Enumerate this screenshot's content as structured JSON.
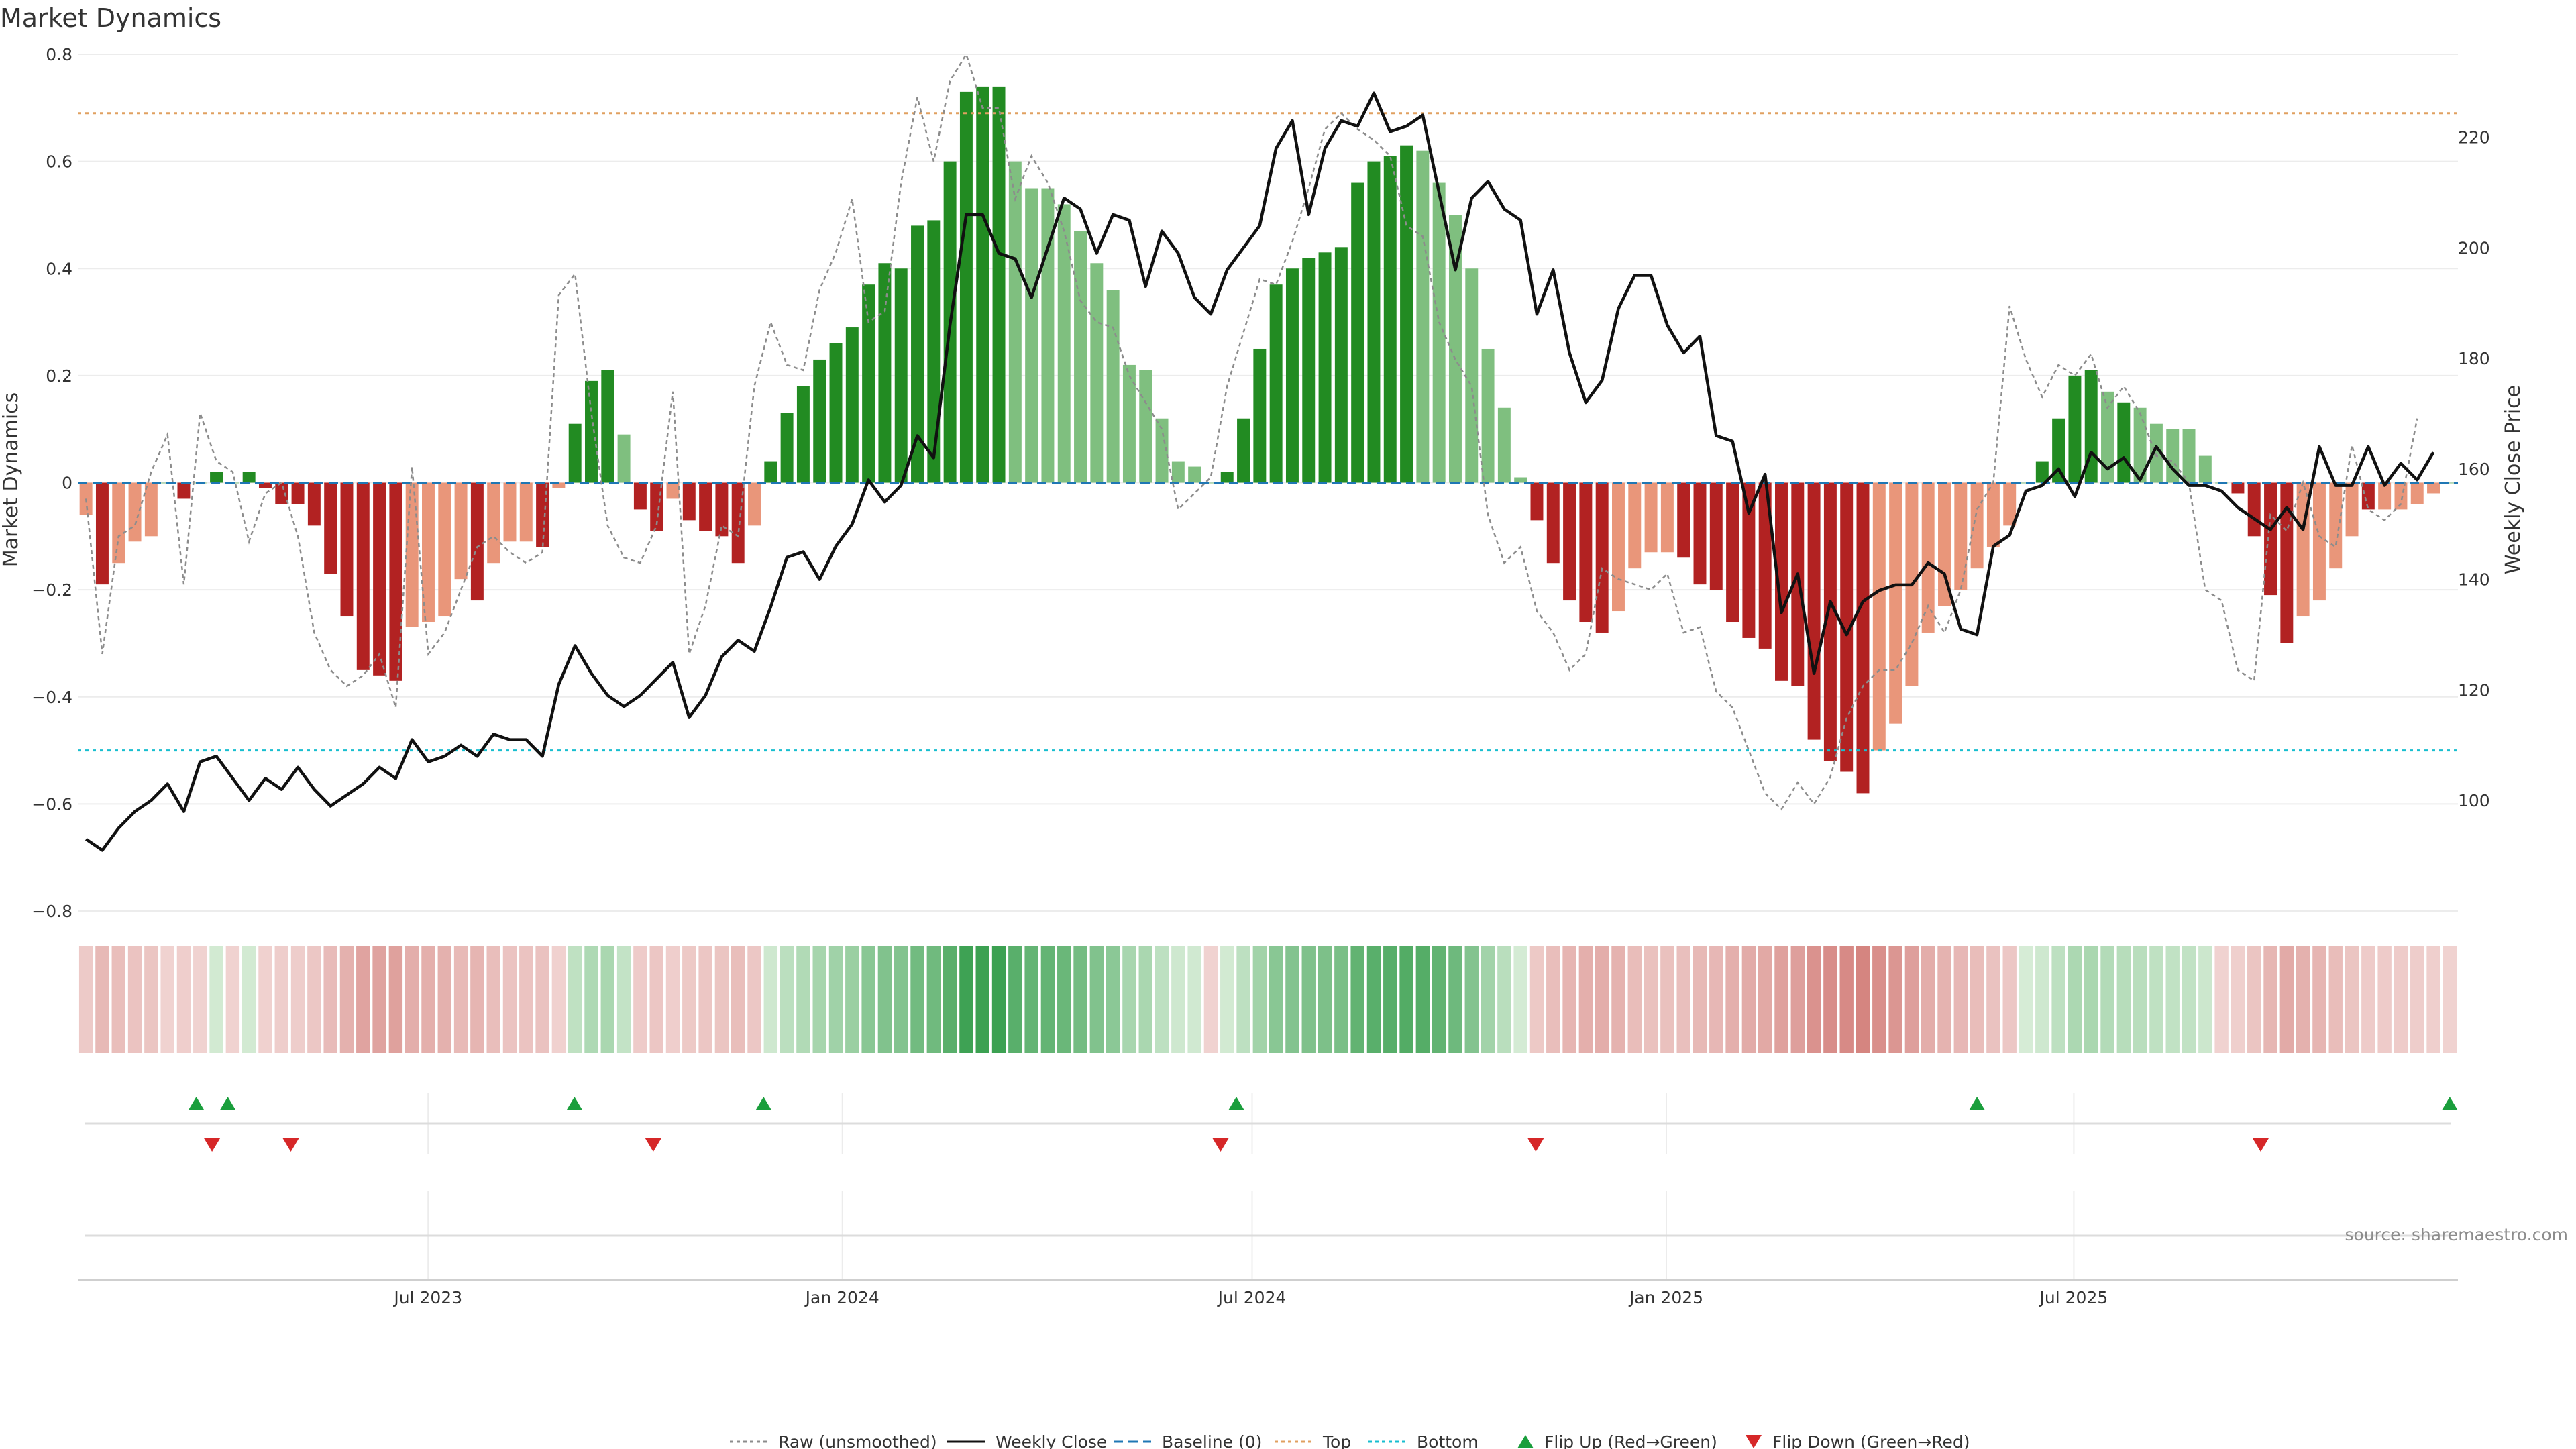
{
  "chart_data": {
    "type": "bar",
    "title": "Market Dynamics",
    "ylabel_left": "Market Dynamics",
    "ylabel_right": "Weekly Close Price",
    "source": "source: sharemaestro.com",
    "ylim_left": [
      -0.8,
      0.8
    ],
    "ylim_right": [
      80,
      235
    ],
    "left_ticks": [
      "0.8",
      "0.6",
      "0.4",
      "0.2",
      "0",
      "−0.2",
      "−0.4",
      "−0.6",
      "−0.8"
    ],
    "left_tick_values": [
      0.8,
      0.6,
      0.4,
      0.2,
      0,
      -0.2,
      -0.4,
      -0.6,
      -0.8
    ],
    "right_ticks": [
      "220",
      "200",
      "180",
      "160",
      "140",
      "120",
      "100"
    ],
    "right_tick_values": [
      220,
      200,
      180,
      160,
      140,
      120,
      100
    ],
    "x_start": "2023-01-30",
    "week_days": 7,
    "x_end": "2025-12-15",
    "x_ticks": [
      {
        "label": "Jul 2023",
        "date": "2023-07-01"
      },
      {
        "label": "Jan 2024",
        "date": "2024-01-01"
      },
      {
        "label": "Jul 2024",
        "date": "2024-07-01"
      },
      {
        "label": "Jan 2025",
        "date": "2025-01-01"
      },
      {
        "label": "Jul 2025",
        "date": "2025-07-01"
      }
    ],
    "top_threshold": 0.69,
    "bottom_threshold": -0.5,
    "grid": true,
    "legend_position": "bottom",
    "colors": {
      "strong_green": "#228b22",
      "light_green": "#7fbf7f",
      "strong_red": "#b22222",
      "light_red": "#e9967a",
      "raw": "#8c8c8c",
      "close": "#111111",
      "baseline": "#1f77b4",
      "top": "#e0a060",
      "bottom": "#17becf",
      "flip_up": "#1a9e3c",
      "flip_down": "#d62728"
    },
    "series": [
      {
        "name": "Market Dynamics",
        "values": [
          -0.06,
          -0.19,
          -0.15,
          -0.11,
          -0.1,
          0,
          -0.03,
          0,
          0.02,
          0,
          0.02,
          -0.01,
          -0.04,
          -0.04,
          -0.08,
          -0.17,
          -0.25,
          -0.35,
          -0.36,
          -0.37,
          -0.27,
          -0.26,
          -0.25,
          -0.18,
          -0.22,
          -0.15,
          -0.11,
          -0.11,
          -0.12,
          -0.01,
          0.11,
          0.19,
          0.21,
          0.09,
          -0.05,
          -0.09,
          -0.03,
          -0.07,
          -0.09,
          -0.1,
          -0.15,
          -0.08,
          0.04,
          0.13,
          0.18,
          0.23,
          0.26,
          0.29,
          0.37,
          0.41,
          0.4,
          0.48,
          0.49,
          0.6,
          0.73,
          0.74,
          0.74,
          0.6,
          0.55,
          0.55,
          0.52,
          0.47,
          0.41,
          0.36,
          0.22,
          0.21,
          0.12,
          0.04,
          0.03,
          0,
          0.02,
          0.12,
          0.25,
          0.37,
          0.4,
          0.42,
          0.43,
          0.44,
          0.56,
          0.6,
          0.61,
          0.63,
          0.62,
          0.56,
          0.5,
          0.4,
          0.25,
          0.14,
          0.01,
          -0.07,
          -0.15,
          -0.22,
          -0.26,
          -0.28,
          -0.24,
          -0.16,
          -0.13,
          -0.13,
          -0.14,
          -0.19,
          -0.2,
          -0.26,
          -0.29,
          -0.31,
          -0.37,
          -0.38,
          -0.48,
          -0.52,
          -0.54,
          -0.58,
          -0.5,
          -0.45,
          -0.38,
          -0.28,
          -0.23,
          -0.2,
          -0.16,
          -0.12,
          -0.08,
          0,
          0.04,
          0.12,
          0.2,
          0.21,
          0.17,
          0.15,
          0.14,
          0.11,
          0.1,
          0.1,
          0.05,
          0,
          -0.02,
          -0.1,
          -0.21,
          -0.3,
          -0.25,
          -0.22,
          -0.16,
          -0.1,
          -0.05,
          -0.05,
          -0.05,
          -0.04,
          -0.02,
          0
        ],
        "categories": [
          -1,
          -1,
          -1,
          -1,
          -1,
          0,
          -1,
          0,
          1,
          0,
          1,
          -1,
          -1,
          -1,
          -1,
          -1,
          -1,
          -1,
          -1,
          -1,
          -1,
          -1,
          -1,
          -1,
          -1,
          -1,
          -1,
          -1,
          -1,
          -1,
          1,
          1,
          1,
          1,
          -1,
          -1,
          -1,
          -1,
          -1,
          -1,
          -1,
          -1,
          1,
          1,
          1,
          1,
          1,
          1,
          1,
          1,
          1,
          1,
          1,
          1,
          1,
          1,
          1,
          1,
          1,
          1,
          1,
          1,
          1,
          1,
          1,
          1,
          1,
          1,
          1,
          0,
          1,
          1,
          1,
          1,
          1,
          1,
          1,
          1,
          1,
          1,
          1,
          1,
          1,
          1,
          1,
          1,
          1,
          1,
          1,
          -1,
          -1,
          -1,
          -1,
          -1,
          -1,
          -1,
          -1,
          -1,
          -1,
          -1,
          -1,
          -1,
          -1,
          -1,
          -1,
          -1,
          -1,
          -1,
          -1,
          -1,
          -1,
          -1,
          -1,
          -1,
          -1,
          -1,
          -1,
          -1,
          -1,
          0,
          1,
          1,
          1,
          1,
          1,
          1,
          1,
          1,
          1,
          1,
          1,
          0,
          -1,
          -1,
          -1,
          -1,
          -1,
          -1,
          -1,
          -1,
          -1,
          -1,
          -1,
          -1,
          -1,
          0
        ],
        "strength": [
          0,
          1,
          0,
          0,
          0,
          0,
          1,
          0,
          1,
          0,
          1,
          1,
          1,
          1,
          1,
          1,
          1,
          1,
          1,
          1,
          0,
          0,
          0,
          0,
          1,
          0,
          0,
          0,
          1,
          0,
          1,
          1,
          1,
          0,
          1,
          1,
          0,
          1,
          1,
          1,
          1,
          0,
          1,
          1,
          1,
          1,
          1,
          1,
          1,
          1,
          1,
          1,
          1,
          1,
          1,
          1,
          1,
          0,
          0,
          0,
          0,
          0,
          0,
          0,
          0,
          0,
          0,
          0,
          0,
          0,
          1,
          1,
          1,
          1,
          1,
          1,
          1,
          1,
          1,
          1,
          1,
          1,
          0,
          0,
          0,
          0,
          0,
          0,
          0,
          1,
          1,
          1,
          1,
          1,
          0,
          0,
          0,
          0,
          1,
          1,
          1,
          1,
          1,
          1,
          1,
          1,
          1,
          1,
          1,
          1,
          0,
          0,
          0,
          0,
          0,
          0,
          0,
          0,
          0,
          0,
          1,
          1,
          1,
          1,
          0,
          1,
          0,
          0,
          0,
          0,
          0,
          0,
          1,
          1,
          1,
          1,
          0,
          0,
          0,
          0,
          1,
          0,
          0,
          0,
          0
        ]
      },
      {
        "name": "Raw (unsmoothed)",
        "values": [
          -0.03,
          -0.32,
          -0.1,
          -0.08,
          0.02,
          0.09,
          -0.19,
          0.13,
          0.04,
          0.02,
          -0.11,
          -0.02,
          0.0,
          -0.1,
          -0.28,
          -0.35,
          -0.38,
          -0.36,
          -0.32,
          -0.42,
          0.03,
          -0.32,
          -0.28,
          -0.2,
          -0.12,
          -0.1,
          -0.13,
          -0.15,
          -0.13,
          0.35,
          0.39,
          0.13,
          -0.08,
          -0.14,
          -0.15,
          -0.08,
          0.17,
          -0.32,
          -0.23,
          -0.08,
          -0.1,
          0.18,
          0.3,
          0.22,
          0.21,
          0.36,
          0.43,
          0.53,
          0.3,
          0.32,
          0.56,
          0.72,
          0.6,
          0.75,
          0.8,
          0.7,
          0.7,
          0.53,
          0.61,
          0.56,
          0.47,
          0.34,
          0.3,
          0.29,
          0.2,
          0.15,
          0.1,
          -0.05,
          -0.02,
          0.01,
          0.18,
          0.28,
          0.38,
          0.37,
          0.45,
          0.55,
          0.66,
          0.69,
          0.66,
          0.64,
          0.61,
          0.48,
          0.46,
          0.3,
          0.23,
          0.18,
          -0.06,
          -0.15,
          -0.12,
          -0.24,
          -0.28,
          -0.35,
          -0.32,
          -0.16,
          -0.18,
          -0.19,
          -0.2,
          -0.17,
          -0.28,
          -0.27,
          -0.39,
          -0.42,
          -0.5,
          -0.58,
          -0.61,
          -0.56,
          -0.6,
          -0.55,
          -0.44,
          -0.38,
          -0.35,
          -0.35,
          -0.3,
          -0.23,
          -0.28,
          -0.2,
          -0.05,
          0.0,
          0.33,
          0.23,
          0.16,
          0.22,
          0.2,
          0.24,
          0.14,
          0.18,
          0.13,
          0.05,
          0.04,
          0.0,
          -0.2,
          -0.22,
          -0.35,
          -0.37,
          -0.06,
          -0.09,
          0.0,
          -0.1,
          -0.12,
          0.07,
          -0.05,
          -0.07,
          -0.04,
          0.12
        ]
      },
      {
        "name": "Weekly Close",
        "values": [
          93,
          91,
          95,
          98,
          100,
          103,
          98,
          107,
          108,
          104,
          100,
          104,
          102,
          106,
          102,
          99,
          101,
          103,
          106,
          104,
          111,
          107,
          108,
          110,
          108,
          112,
          111,
          111,
          108,
          121,
          128,
          123,
          119,
          117,
          119,
          122,
          125,
          115,
          119,
          126,
          129,
          127,
          135,
          144,
          145,
          140,
          146,
          150,
          158,
          154,
          157,
          166,
          162,
          186,
          206,
          206,
          199,
          198,
          191,
          200,
          209,
          207,
          199,
          206,
          205,
          193,
          203,
          199,
          191,
          188,
          196,
          200,
          204,
          218,
          223,
          206,
          218,
          223,
          222,
          228,
          221,
          222,
          224,
          210,
          196,
          209,
          212,
          207,
          205,
          188,
          196,
          181,
          172,
          176,
          189,
          195,
          195,
          186,
          181,
          184,
          166,
          165,
          152,
          159,
          134,
          141,
          123,
          136,
          130,
          136,
          138,
          139,
          139,
          143,
          141,
          131,
          130,
          146,
          148,
          156,
          157,
          160,
          155,
          163,
          160,
          162,
          158,
          164,
          160,
          157,
          157,
          156,
          153,
          151,
          149,
          153,
          149,
          164,
          157,
          157,
          164,
          157,
          161,
          158,
          163
        ]
      }
    ],
    "strip": {
      "green_start": [
        30,
        42,
        70,
        119
      ],
      "red_start": [
        5,
        9,
        34,
        69,
        88,
        131
      ]
    },
    "flips_up_dates": [
      "2023-03-20",
      "2023-04-03",
      "2023-09-04",
      "2023-11-27",
      "2024-06-24",
      "2025-05-19",
      "2025-12-15"
    ],
    "flips_down_dates": [
      "2023-03-27",
      "2023-05-01",
      "2023-10-09",
      "2024-06-17",
      "2024-11-04",
      "2025-09-22"
    ]
  },
  "legend": [
    {
      "label": "Raw (unsmoothed)",
      "kind": "line-dotted",
      "color": "#8c8c8c"
    },
    {
      "label": "Weekly Close",
      "kind": "line-solid",
      "color": "#111111"
    },
    {
      "label": "Baseline (0)",
      "kind": "line-dashed",
      "color": "#1f77b4"
    },
    {
      "label": "Top",
      "kind": "line-dotted",
      "color": "#e0a060"
    },
    {
      "label": "Bottom",
      "kind": "line-dotted",
      "color": "#17becf"
    },
    {
      "label": "Flip Up (Red→Green)",
      "kind": "triangle-up",
      "color": "#1a9e3c"
    },
    {
      "label": "Flip Down (Green→Red)",
      "kind": "triangle-down",
      "color": "#d62728"
    }
  ]
}
